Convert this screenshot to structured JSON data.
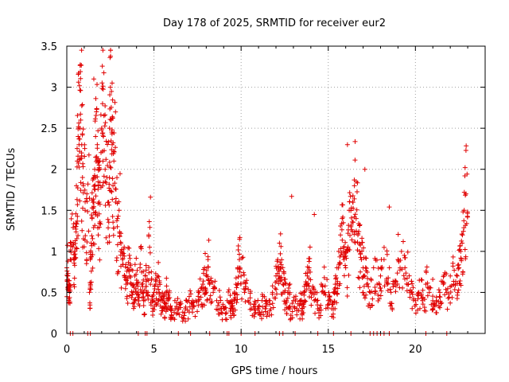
{
  "chart_data": {
    "type": "scatter",
    "title": "Day 178 of 2025, SRMTID for receiver eur2",
    "xlabel": "GPS time / hours",
    "ylabel": "SRMTID / TECUs",
    "xlim": [
      0,
      24
    ],
    "ylim": [
      0,
      3.5
    ],
    "x_ticks": [
      0,
      5,
      10,
      15,
      20
    ],
    "x_tick_labels": [
      "0",
      "5",
      "10",
      "15",
      "20"
    ],
    "y_ticks": [
      0,
      0.5,
      1,
      1.5,
      2,
      2.5,
      3,
      3.5
    ],
    "y_tick_labels": [
      "0",
      "0.5",
      "1",
      "1.5",
      "2",
      "2.5",
      "3",
      "3.5"
    ],
    "grid": true,
    "marker": "+",
    "color": "#e00000",
    "series": [
      {
        "name": "SRMTID",
        "x": [
          0.0,
          0.05,
          0.1,
          0.15,
          0.2,
          0.25,
          0.4,
          0.45,
          0.5,
          0.55,
          0.6,
          0.65,
          0.7,
          0.75,
          0.8,
          0.85,
          0.9,
          0.95,
          1.05,
          1.15,
          1.3,
          1.35,
          1.4,
          1.45,
          1.5,
          1.55,
          1.6,
          1.65,
          1.7,
          1.75,
          1.8,
          1.85,
          1.9,
          2.0,
          2.05,
          2.1,
          2.2,
          2.3,
          2.4,
          2.45,
          2.5,
          2.55,
          2.6,
          2.65,
          2.7,
          2.8,
          2.9,
          3.0,
          3.1,
          3.2,
          3.3,
          3.4,
          3.5,
          3.6,
          3.7,
          3.8,
          3.9,
          4.0,
          4.1,
          4.2,
          4.3,
          4.4,
          4.5,
          4.6,
          4.7,
          4.8,
          4.9,
          5.0,
          5.1,
          5.2,
          5.3,
          5.4,
          5.5,
          5.6,
          5.7,
          5.8,
          5.9,
          6.0,
          6.2,
          6.4,
          6.6,
          6.8,
          7.0,
          7.2,
          7.4,
          7.6,
          7.8,
          7.9,
          8.0,
          8.1,
          8.2,
          8.4,
          8.6,
          8.8,
          9.0,
          9.2,
          9.4,
          9.5,
          9.6,
          9.7,
          9.8,
          9.9,
          10.0,
          10.2,
          10.4,
          10.6,
          10.8,
          11.0,
          11.2,
          11.4,
          11.6,
          11.8,
          12.0,
          12.1,
          12.2,
          12.3,
          12.4,
          12.5,
          12.6,
          12.7,
          12.8,
          13.0,
          13.2,
          13.4,
          13.5,
          13.6,
          13.7,
          13.8,
          13.9,
          14.0,
          14.2,
          14.4,
          14.6,
          14.8,
          15.0,
          15.2,
          15.3,
          15.4,
          15.5,
          15.6,
          15.7,
          15.8,
          15.9,
          16.0,
          16.1,
          16.2,
          16.3,
          16.4,
          16.5,
          16.6,
          16.7,
          16.8,
          16.9,
          17.0,
          17.1,
          17.2,
          17.4,
          17.6,
          17.8,
          18.0,
          18.2,
          18.4,
          18.6,
          18.8,
          19.0,
          19.2,
          19.4,
          19.6,
          19.8,
          20.0,
          20.2,
          20.4,
          20.6,
          20.8,
          21.0,
          21.2,
          21.4,
          21.6,
          21.8,
          22.0,
          22.2,
          22.4,
          22.5,
          22.6,
          22.7,
          22.8,
          22.9
        ],
        "y": [
          0.8,
          0.7,
          0.6,
          0.5,
          0.9,
          1.1,
          0.9,
          1.0,
          1.3,
          1.8,
          2.1,
          2.4,
          2.3,
          2.5,
          2.6,
          2.2,
          1.9,
          1.8,
          1.5,
          1.7,
          0.5,
          0.9,
          1.1,
          1.4,
          1.6,
          1.9,
          2.0,
          2.4,
          2.7,
          2.3,
          1.8,
          1.6,
          2.1,
          2.5,
          2.8,
          2.4,
          2.0,
          1.9,
          1.6,
          2.5,
          3.0,
          2.6,
          2.3,
          1.8,
          2.1,
          1.6,
          1.3,
          1.5,
          1.0,
          0.9,
          0.7,
          0.6,
          0.8,
          0.7,
          0.6,
          0.5,
          0.7,
          0.6,
          0.5,
          0.8,
          0.6,
          0.4,
          0.7,
          0.5,
          1.2,
          0.6,
          0.4,
          0.5,
          0.6,
          0.7,
          0.5,
          0.4,
          0.4,
          0.3,
          0.5,
          0.4,
          0.3,
          0.3,
          0.4,
          0.3,
          0.2,
          0.3,
          0.4,
          0.3,
          0.4,
          0.5,
          0.6,
          0.8,
          0.7,
          0.9,
          0.6,
          0.5,
          0.4,
          0.3,
          0.3,
          0.4,
          0.3,
          0.3,
          0.4,
          0.6,
          0.8,
          0.9,
          0.7,
          0.5,
          0.4,
          0.3,
          0.3,
          0.3,
          0.4,
          0.3,
          0.4,
          0.5,
          0.7,
          0.9,
          1.1,
          0.8,
          0.6,
          0.5,
          0.4,
          0.5,
          0.3,
          0.4,
          0.3,
          0.4,
          0.3,
          0.5,
          0.6,
          0.7,
          0.8,
          0.5,
          0.4,
          0.3,
          0.6,
          0.5,
          0.4,
          0.3,
          0.5,
          0.6,
          0.8,
          1.0,
          1.2,
          1.4,
          0.9,
          0.8,
          1.0,
          1.5,
          1.3,
          1.6,
          1.8,
          1.4,
          1.2,
          1.0,
          0.9,
          0.8,
          0.7,
          0.6,
          0.5,
          0.8,
          0.6,
          0.7,
          0.9,
          0.6,
          0.5,
          0.6,
          0.9,
          1.0,
          0.8,
          0.6,
          0.5,
          0.4,
          0.5,
          0.4,
          0.6,
          0.5,
          0.3,
          0.4,
          0.5,
          0.6,
          0.5,
          0.7,
          0.6,
          0.7,
          0.8,
          1.0,
          1.2,
          1.5,
          1.7
        ],
        "outliers": [
          {
            "x": 1.55,
            "y": 3.1
          },
          {
            "x": 2.6,
            "y": 3.05
          },
          {
            "x": 16.1,
            "y": 2.3
          },
          {
            "x": 17.1,
            "y": 2.0
          },
          {
            "x": 22.9,
            "y": 2.23
          },
          {
            "x": 22.85,
            "y": 2.02
          },
          {
            "x": 12.9,
            "y": 1.67
          },
          {
            "x": 4.8,
            "y": 1.66
          },
          {
            "x": 18.5,
            "y": 1.54
          },
          {
            "x": 14.2,
            "y": 1.45
          }
        ],
        "zero_marks_x": [
          0.2,
          0.35,
          1.2,
          1.35,
          4.1,
          4.5,
          4.6,
          6.4,
          7.1,
          8.2,
          9.2,
          9.3,
          10.0,
          10.8,
          12.2,
          12.4,
          13.1,
          14.4,
          15.3,
          16.3,
          17.4,
          17.6,
          17.8,
          18.0,
          18.2,
          18.5,
          20.6,
          21.8
        ]
      }
    ]
  }
}
